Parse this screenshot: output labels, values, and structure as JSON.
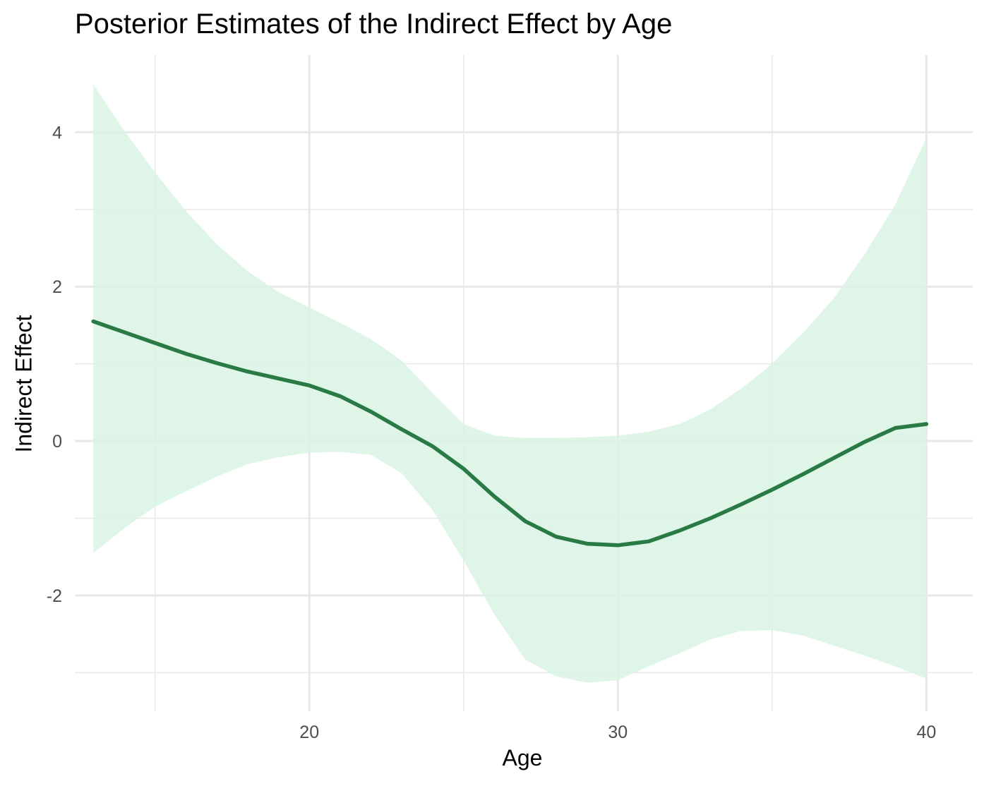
{
  "chart_data": {
    "type": "line",
    "title": "Posterior Estimates of the Indirect Effect by Age",
    "xlabel": "Age",
    "ylabel": "Indirect Effect",
    "xlim": [
      12.4,
      41.5
    ],
    "ylim": [
      -3.5,
      5.0
    ],
    "x_ticks": [
      20,
      30,
      40
    ],
    "x_minor_ticks": [
      15,
      25,
      35
    ],
    "y_ticks": [
      -2,
      0,
      2,
      4
    ],
    "y_minor_ticks": [
      -3,
      -1,
      1,
      3
    ],
    "grid": true,
    "legend": "none",
    "colors": {
      "line": "#2a7a46",
      "band": "#d8f3e3",
      "grid": "#e8e8e8",
      "tick_text": "#4d4d4d"
    },
    "series": [
      {
        "x": [
          13.0,
          14.0,
          15.0,
          16.0,
          17.0,
          18.0,
          19.0,
          20.0,
          21.0,
          22.0,
          23.0,
          24.0,
          25.0,
          26.0,
          27.0,
          28.0,
          29.0,
          30.0,
          31.0,
          32.0,
          33.0,
          34.0,
          35.0,
          36.0,
          37.0,
          38.0,
          39.0,
          40.0
        ],
        "y": [
          1.55,
          1.41,
          1.27,
          1.13,
          1.01,
          0.9,
          0.81,
          0.72,
          0.58,
          0.38,
          0.15,
          -0.07,
          -0.36,
          -0.72,
          -1.04,
          -1.24,
          -1.33,
          -1.35,
          -1.3,
          -1.16,
          -1.0,
          -0.82,
          -0.63,
          -0.43,
          -0.22,
          -0.01,
          0.17,
          0.22
        ],
        "lower": [
          -1.45,
          -1.13,
          -0.85,
          -0.65,
          -0.46,
          -0.3,
          -0.21,
          -0.15,
          -0.14,
          -0.18,
          -0.42,
          -0.9,
          -1.55,
          -2.25,
          -2.83,
          -3.05,
          -3.13,
          -3.1,
          -2.92,
          -2.75,
          -2.57,
          -2.46,
          -2.45,
          -2.52,
          -2.65,
          -2.78,
          -2.92,
          -3.08
        ],
        "upper": [
          4.62,
          4.02,
          3.48,
          2.98,
          2.55,
          2.2,
          1.93,
          1.73,
          1.53,
          1.32,
          1.04,
          0.62,
          0.22,
          0.07,
          0.04,
          0.04,
          0.05,
          0.07,
          0.12,
          0.22,
          0.41,
          0.68,
          1.0,
          1.4,
          1.85,
          2.42,
          3.07,
          3.93
        ]
      }
    ]
  }
}
